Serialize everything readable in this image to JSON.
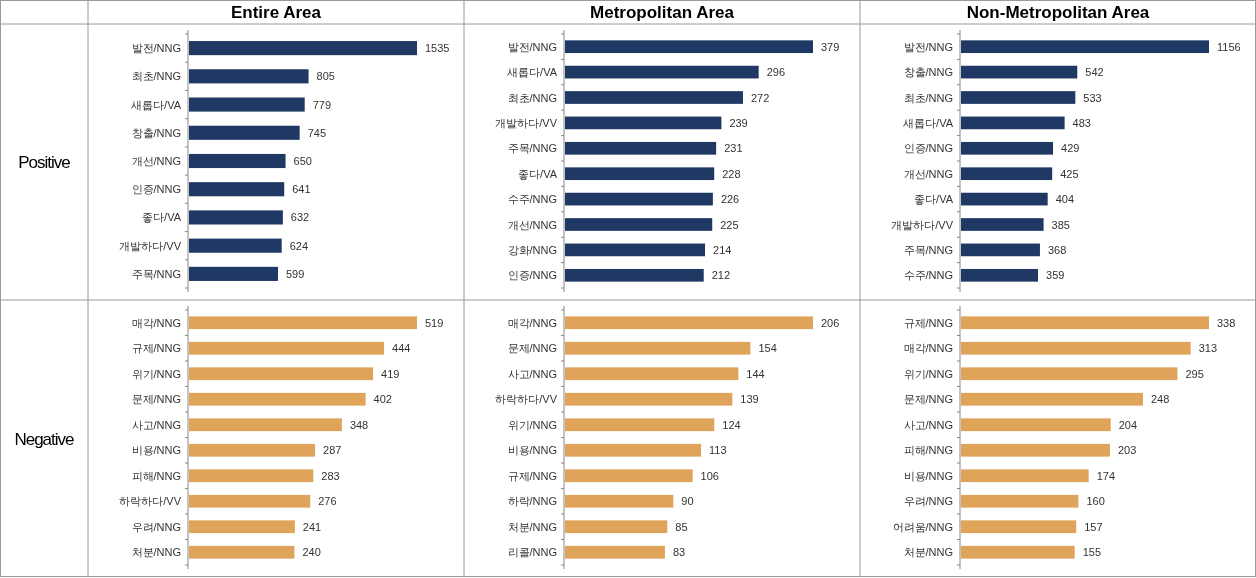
{
  "chart_data": [
    {
      "type": "bar",
      "orientation": "horizontal",
      "title": "Entire Area",
      "annotations": [
        "Positive"
      ],
      "color": "#1f3864",
      "data_labels": true,
      "categories": [
        "발전/NNG",
        "최초/NNG",
        "새롭다/VA",
        "창출/NNG",
        "개선/NNG",
        "인증/NNG",
        "좋다/VA",
        "개발하다/VV",
        "주목/NNG"
      ],
      "values": [
        1535,
        805,
        779,
        745,
        650,
        641,
        632,
        624,
        599
      ]
    },
    {
      "type": "bar",
      "orientation": "horizontal",
      "title": "Metropolitan Area",
      "color": "#1f3864",
      "data_labels": true,
      "categories": [
        "발전/NNG",
        "새롭다/VA",
        "최초/NNG",
        "개발하다/VV",
        "주목/NNG",
        "좋다/VA",
        "수주/NNG",
        "개선/NNG",
        "강화/NNG",
        "인증/NNG"
      ],
      "values": [
        379,
        296,
        272,
        239,
        231,
        228,
        226,
        225,
        214,
        212
      ]
    },
    {
      "type": "bar",
      "orientation": "horizontal",
      "title": "Non-Metropolitan Area",
      "color": "#1f3864",
      "data_labels": true,
      "categories": [
        "발전/NNG",
        "창출/NNG",
        "최초/NNG",
        "새롭다/VA",
        "인증/NNG",
        "개선/NNG",
        "좋다/VA",
        "개발하다/VV",
        "주목/NNG",
        "수주/NNG"
      ],
      "values": [
        1156,
        542,
        533,
        483,
        429,
        425,
        404,
        385,
        368,
        359
      ]
    },
    {
      "type": "bar",
      "orientation": "horizontal",
      "annotations": [
        "Negative"
      ],
      "color": "#e0a35a",
      "data_labels": true,
      "categories": [
        "매각/NNG",
        "규제/NNG",
        "위기/NNG",
        "문제/NNG",
        "사고/NNG",
        "비용/NNG",
        "피해/NNG",
        "하락하다/VV",
        "우려/NNG",
        "처분/NNG"
      ],
      "values": [
        519,
        444,
        419,
        402,
        348,
        287,
        283,
        276,
        241,
        240
      ]
    },
    {
      "type": "bar",
      "orientation": "horizontal",
      "color": "#e0a35a",
      "data_labels": true,
      "categories": [
        "매각/NNG",
        "문제/NNG",
        "사고/NNG",
        "하락하다/VV",
        "위기/NNG",
        "비용/NNG",
        "규제/NNG",
        "하락/NNG",
        "처분/NNG",
        "리콜/NNG"
      ],
      "values": [
        206,
        154,
        144,
        139,
        124,
        113,
        106,
        90,
        85,
        83
      ]
    },
    {
      "type": "bar",
      "orientation": "horizontal",
      "color": "#e0a35a",
      "data_labels": true,
      "categories": [
        "규제/NNG",
        "매각/NNG",
        "위기/NNG",
        "문제/NNG",
        "사고/NNG",
        "피해/NNG",
        "비용/NNG",
        "우려/NNG",
        "어려움/NNG",
        "처분/NNG"
      ],
      "values": [
        338,
        313,
        295,
        248,
        204,
        203,
        174,
        160,
        157,
        155
      ]
    }
  ]
}
